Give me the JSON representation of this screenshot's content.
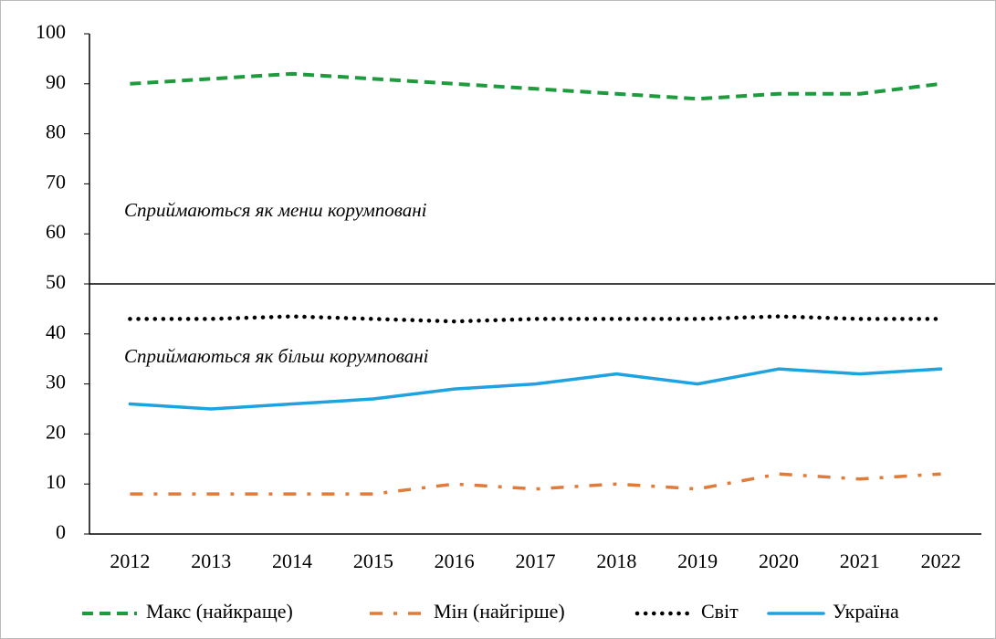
{
  "chart_data": {
    "type": "line",
    "categories": [
      "2012",
      "2013",
      "2014",
      "2015",
      "2016",
      "2017",
      "2018",
      "2019",
      "2020",
      "2021",
      "2022"
    ],
    "series": [
      {
        "name": "Макс (найкраще)",
        "color": "#1e9b3c",
        "dash": "dashed",
        "values": [
          90,
          91,
          92,
          91,
          90,
          89,
          88,
          87,
          88,
          88,
          90
        ]
      },
      {
        "name": "Мін (найгірше)",
        "color": "#e07b39",
        "dash": "dashdot",
        "values": [
          8,
          8,
          8,
          8,
          10,
          9,
          10,
          9,
          12,
          11,
          12
        ]
      },
      {
        "name": "Світ",
        "color": "#000000",
        "dash": "dotted",
        "values": [
          43,
          43,
          43.5,
          43,
          42.5,
          43,
          43,
          43,
          43.5,
          43,
          43
        ]
      },
      {
        "name": "Україна",
        "color": "#1ea3e0",
        "dash": "solid",
        "values": [
          26,
          25,
          26,
          27,
          29,
          30,
          32,
          30,
          33,
          32,
          33
        ]
      }
    ],
    "reference_line": 50,
    "annotations": [
      "Сприймаються як менш корумповані",
      "Сприймаються як більш корумповані"
    ],
    "ylim": [
      0,
      100
    ],
    "yticks": [
      0,
      10,
      20,
      30,
      40,
      50,
      60,
      70,
      80,
      90,
      100
    ],
    "grid": false,
    "legend": "bottom"
  }
}
